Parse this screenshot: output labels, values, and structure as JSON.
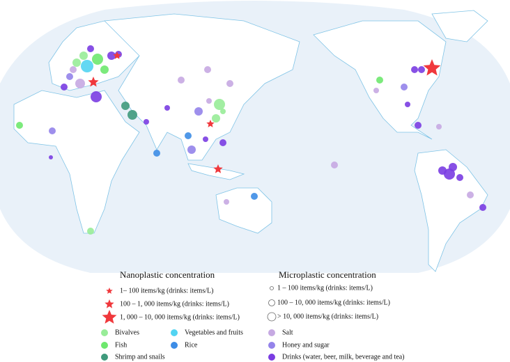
{
  "legend": {
    "nanoplastic": {
      "title": "Nanoplastic concentration",
      "color": "#f0383c",
      "items": [
        "1– 100 items/kg (drinks: items/L)",
        "100 – 1, 000 items/kg (drinks: items/L)",
        "1, 000 – 10, 000 items/kg (drinks: items/L)"
      ]
    },
    "microplastic": {
      "title": "Microplastic concentration",
      "items": [
        "1 – 100 items/kg (drinks: items/L)",
        "100 – 10, 000 items/kg (drinks: items/L)",
        "> 10, 000 items/kg (drinks: items/L)"
      ]
    },
    "categories": [
      {
        "label": "Bivalves",
        "color": "#98ec98"
      },
      {
        "label": "Fish",
        "color": "#6ee86e"
      },
      {
        "label": "Shrimp and snails",
        "color": "#3f9a7c"
      },
      {
        "label": "Vegetables and fruits",
        "color": "#52d4f2"
      },
      {
        "label": "Rice",
        "color": "#3d8de6"
      },
      {
        "label": "Salt",
        "color": "#c6a9e2"
      },
      {
        "label": "Honey and sugar",
        "color": "#9483ea"
      },
      {
        "label": "Drinks (water, beer, milk, beverage and tea)",
        "color": "#7a3de2"
      }
    ]
  }
}
